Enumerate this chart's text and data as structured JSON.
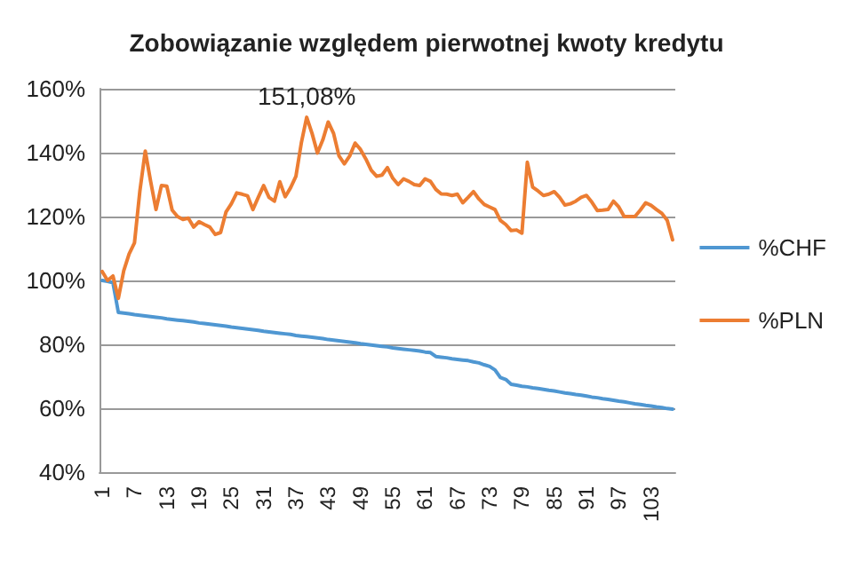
{
  "chart_data": {
    "type": "line",
    "title": "Zobowiązanie względem pierwotnej kwoty kredytu",
    "categories": [
      "1",
      null,
      null,
      null,
      null,
      null,
      "7",
      null,
      null,
      null,
      null,
      null,
      "13",
      null,
      null,
      null,
      null,
      null,
      "19",
      null,
      null,
      null,
      null,
      null,
      "25",
      null,
      null,
      null,
      null,
      null,
      "31",
      null,
      null,
      null,
      null,
      null,
      "37",
      null,
      null,
      null,
      null,
      null,
      "43",
      null,
      null,
      null,
      null,
      null,
      "49",
      null,
      null,
      null,
      null,
      null,
      "55",
      null,
      null,
      null,
      null,
      null,
      "61",
      null,
      null,
      null,
      null,
      null,
      "67",
      null,
      null,
      null,
      null,
      null,
      "73",
      null,
      null,
      null,
      null,
      null,
      "79",
      null,
      null,
      null,
      null,
      null,
      "85",
      null,
      null,
      null,
      null,
      null,
      "91",
      null,
      null,
      null,
      null,
      null,
      "97",
      null,
      null,
      null,
      null,
      null,
      "103",
      null,
      null,
      null,
      null
    ],
    "series": [
      {
        "name": "%CHF",
        "color": "#4f97d2",
        "values": [
          100,
          99.7,
          99.3,
          90,
          89.8,
          89.6,
          89.3,
          89.1,
          88.9,
          88.7,
          88.5,
          88.3,
          88.0,
          87.8,
          87.6,
          87.4,
          87.2,
          87.0,
          86.7,
          86.5,
          86.3,
          86.1,
          85.9,
          85.7,
          85.4,
          85.2,
          85.0,
          84.8,
          84.6,
          84.4,
          84.1,
          83.9,
          83.7,
          83.5,
          83.3,
          83.1,
          82.8,
          82.6,
          82.4,
          82.2,
          82.0,
          81.8,
          81.5,
          81.3,
          81.1,
          80.9,
          80.7,
          80.5,
          80.2,
          80.0,
          79.8,
          79.6,
          79.4,
          79.2,
          78.9,
          78.7,
          78.5,
          78.3,
          78.1,
          77.9,
          77.6,
          77.4,
          76.2,
          76.0,
          75.8,
          75.5,
          75.3,
          75.1,
          74.9,
          74.5,
          74.2,
          73.6,
          73.1,
          72.0,
          69.6,
          69.0,
          67.5,
          67.2,
          66.9,
          66.7,
          66.4,
          66.2,
          65.9,
          65.6,
          65.4,
          65.1,
          64.8,
          64.6,
          64.3,
          64.1,
          63.8,
          63.5,
          63.3,
          63.0,
          62.8,
          62.5,
          62.2,
          62.0,
          61.7,
          61.4,
          61.2,
          60.9,
          60.7,
          60.4,
          60.2,
          59.9,
          59.7
        ]
      },
      {
        "name": "%PLN",
        "color": "#ec7d32",
        "values": [
          102.8,
          100,
          101.4,
          94.4,
          103,
          108.3,
          111.8,
          128,
          140.5,
          131,
          122.2,
          129.7,
          129.5,
          122,
          120,
          119.1,
          119.5,
          116.7,
          118.4,
          117.5,
          116.7,
          114.4,
          115,
          121.4,
          124,
          127.4,
          127,
          126.5,
          122.2,
          126,
          129.7,
          126,
          124.8,
          130.9,
          126.2,
          129,
          132.6,
          143,
          151.08,
          146,
          139.9,
          144,
          149.6,
          146,
          139,
          136.5,
          139,
          143,
          141,
          138,
          134.5,
          132.6,
          133,
          135.3,
          132,
          130,
          131.8,
          131,
          130,
          129.7,
          131.8,
          131,
          128.5,
          127.1,
          127,
          126.6,
          127,
          124.3,
          126,
          127.8,
          125.5,
          123.8,
          123,
          122.2,
          118.8,
          117.5,
          115.6,
          115.8,
          114.8,
          137,
          129.2,
          128,
          126.6,
          127,
          127.8,
          126,
          123.6,
          124,
          124.8,
          126,
          126.6,
          124.5,
          121.9,
          122,
          122.2,
          124.8,
          123,
          120,
          120,
          120,
          122,
          124.3,
          123.5,
          122.2,
          121,
          118.8,
          112.7
        ],
        "value_labels": [
          null,
          null,
          null,
          null,
          null,
          null,
          null,
          null,
          null,
          null,
          null,
          null,
          null,
          null,
          null,
          null,
          null,
          null,
          null,
          null,
          null,
          null,
          null,
          null,
          null,
          null,
          null,
          null,
          null,
          null,
          null,
          null,
          null,
          null,
          null,
          null,
          null,
          null,
          "151,08%",
          null,
          null,
          null,
          null,
          null,
          null,
          null,
          null,
          null,
          null,
          null,
          null,
          null,
          null,
          null,
          null,
          null,
          null,
          null,
          null,
          null,
          null,
          null,
          null,
          null,
          null,
          null,
          null,
          null,
          null,
          null,
          null,
          null,
          null,
          null,
          null,
          null,
          null,
          null,
          null,
          null,
          null,
          null,
          null,
          null,
          null,
          null,
          null,
          null,
          null,
          null,
          null,
          null,
          null,
          null,
          null,
          null,
          null,
          null,
          null,
          null,
          null,
          null,
          null,
          null,
          null,
          null,
          null
        ]
      }
    ],
    "ylim": [
      40,
      160
    ],
    "yticks": [
      {
        "value": 40,
        "label": "40%"
      },
      {
        "value": 60,
        "label": "60%"
      },
      {
        "value": 80,
        "label": "80%"
      },
      {
        "value": 100,
        "label": "100%"
      },
      {
        "value": 120,
        "label": "120%"
      },
      {
        "value": 140,
        "label": "140%"
      },
      {
        "value": 160,
        "label": "160%"
      }
    ],
    "grid": "y",
    "legend": "right"
  }
}
